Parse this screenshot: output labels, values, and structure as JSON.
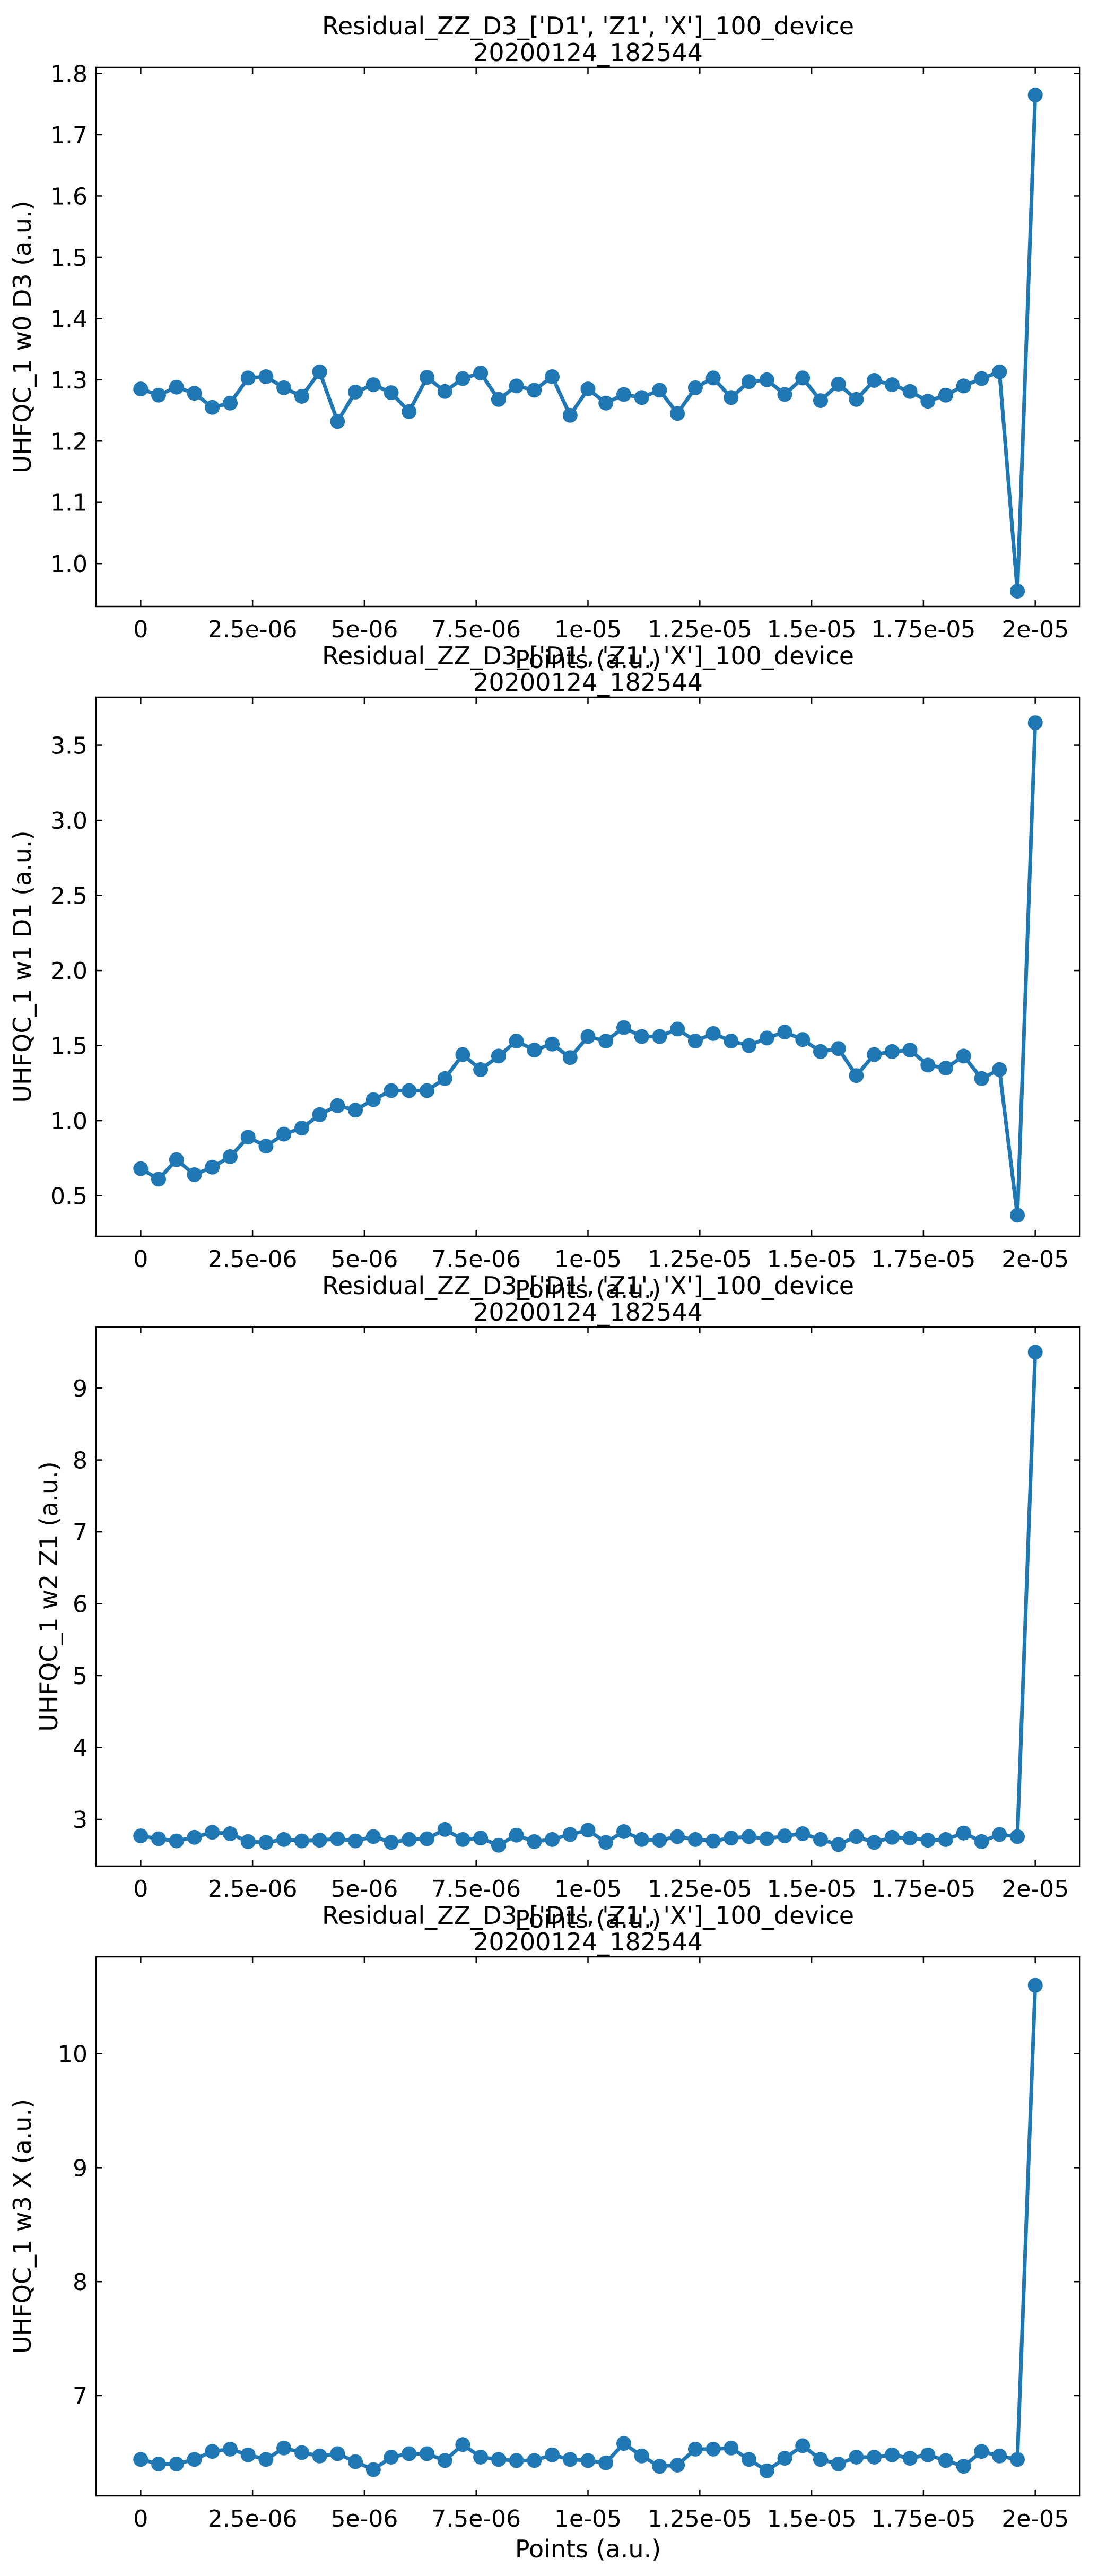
{
  "chart_data": [
    {
      "type": "line",
      "title": "Residual_ZZ_D3_['D1', 'Z1', 'X']_100_device",
      "subtitle": "20200124_182544",
      "xlabel": "Points (a.u.)",
      "ylabel": "UHFQC_1 w0 D3 (a.u.)",
      "xlim": [
        -1e-06,
        2.1e-05
      ],
      "ylim": [
        0.93,
        1.81
      ],
      "x_ticks": [
        0,
        2.5e-06,
        5e-06,
        7.5e-06,
        1e-05,
        1.25e-05,
        1.5e-05,
        1.75e-05,
        2e-05
      ],
      "x_tick_labels": [
        "0",
        "2.5e-06",
        "5e-06",
        "7.5e-06",
        "1e-05",
        "1.25e-05",
        "1.5e-05",
        "1.75e-05",
        "2e-05"
      ],
      "y_ticks": [
        1.0,
        1.1,
        1.2,
        1.3,
        1.4,
        1.5,
        1.6,
        1.7,
        1.8
      ],
      "y_tick_labels": [
        "1.0",
        "1.1",
        "1.2",
        "1.3",
        "1.4",
        "1.5",
        "1.6",
        "1.7",
        "1.8"
      ],
      "grid": false,
      "series": [
        {
          "color": "#1f77b4",
          "x_start": 0,
          "x_step": 4e-07,
          "y": [
            1.285,
            1.275,
            1.288,
            1.278,
            1.255,
            1.262,
            1.303,
            1.305,
            1.287,
            1.273,
            1.313,
            1.232,
            1.28,
            1.292,
            1.279,
            1.248,
            1.304,
            1.281,
            1.302,
            1.311,
            1.268,
            1.29,
            1.283,
            1.305,
            1.242,
            1.285,
            1.262,
            1.276,
            1.271,
            1.283,
            1.245,
            1.287,
            1.303,
            1.271,
            1.297,
            1.3,
            1.276,
            1.303,
            1.266,
            1.293,
            1.268,
            1.299,
            1.292,
            1.281,
            1.265,
            1.275,
            1.29,
            1.302,
            1.313,
            0.955,
            1.765
          ]
        }
      ]
    },
    {
      "type": "line",
      "title": "Residual_ZZ_D3_['D1', 'Z1', 'X']_100_device",
      "subtitle": "20200124_182544",
      "xlabel": "Points (a.u.)",
      "ylabel": "UHFQC_1 w1 D1 (a.u.)",
      "xlim": [
        -1e-06,
        2.1e-05
      ],
      "ylim": [
        0.23,
        3.82
      ],
      "x_ticks": [
        0,
        2.5e-06,
        5e-06,
        7.5e-06,
        1e-05,
        1.25e-05,
        1.5e-05,
        1.75e-05,
        2e-05
      ],
      "x_tick_labels": [
        "0",
        "2.5e-06",
        "5e-06",
        "7.5e-06",
        "1e-05",
        "1.25e-05",
        "1.5e-05",
        "1.75e-05",
        "2e-05"
      ],
      "y_ticks": [
        0.5,
        1.0,
        1.5,
        2.0,
        2.5,
        3.0,
        3.5
      ],
      "y_tick_labels": [
        "0.5",
        "1.0",
        "1.5",
        "2.0",
        "2.5",
        "3.0",
        "3.5"
      ],
      "grid": false,
      "series": [
        {
          "color": "#1f77b4",
          "x_start": 0,
          "x_step": 4e-07,
          "y": [
            0.68,
            0.61,
            0.74,
            0.64,
            0.69,
            0.76,
            0.89,
            0.83,
            0.91,
            0.95,
            1.04,
            1.1,
            1.07,
            1.14,
            1.2,
            1.2,
            1.2,
            1.28,
            1.44,
            1.34,
            1.43,
            1.53,
            1.47,
            1.51,
            1.42,
            1.56,
            1.53,
            1.62,
            1.56,
            1.56,
            1.61,
            1.53,
            1.58,
            1.53,
            1.5,
            1.55,
            1.59,
            1.54,
            1.46,
            1.48,
            1.3,
            1.44,
            1.46,
            1.47,
            1.37,
            1.35,
            1.43,
            1.28,
            1.34,
            0.37,
            3.65
          ]
        }
      ]
    },
    {
      "type": "line",
      "title": "Residual_ZZ_D3_['D1', 'Z1', 'X']_100_device",
      "subtitle": "20200124_182544",
      "xlabel": "Points (a.u.)",
      "ylabel": "UHFQC_1 w2 Z1 (a.u.)",
      "xlim": [
        -1e-06,
        2.1e-05
      ],
      "ylim": [
        2.35,
        9.85
      ],
      "x_ticks": [
        0,
        2.5e-06,
        5e-06,
        7.5e-06,
        1e-05,
        1.25e-05,
        1.5e-05,
        1.75e-05,
        2e-05
      ],
      "x_tick_labels": [
        "0",
        "2.5e-06",
        "5e-06",
        "7.5e-06",
        "1e-05",
        "1.25e-05",
        "1.5e-05",
        "1.75e-05",
        "2e-05"
      ],
      "y_ticks": [
        3,
        4,
        5,
        6,
        7,
        8,
        9
      ],
      "y_tick_labels": [
        "3",
        "4",
        "5",
        "6",
        "7",
        "8",
        "9"
      ],
      "grid": false,
      "series": [
        {
          "color": "#1f77b4",
          "x_start": 0,
          "x_step": 4e-07,
          "y": [
            2.77,
            2.73,
            2.7,
            2.75,
            2.82,
            2.8,
            2.69,
            2.68,
            2.72,
            2.7,
            2.71,
            2.73,
            2.7,
            2.76,
            2.68,
            2.72,
            2.73,
            2.86,
            2.72,
            2.74,
            2.64,
            2.78,
            2.69,
            2.72,
            2.79,
            2.85,
            2.68,
            2.83,
            2.72,
            2.71,
            2.76,
            2.72,
            2.7,
            2.74,
            2.76,
            2.73,
            2.77,
            2.8,
            2.72,
            2.65,
            2.76,
            2.68,
            2.75,
            2.74,
            2.71,
            2.72,
            2.81,
            2.69,
            2.79,
            2.76,
            9.5
          ]
        }
      ]
    },
    {
      "type": "line",
      "title": "Residual_ZZ_D3_['D1', 'Z1', 'X']_100_device",
      "subtitle": "20200124_182544",
      "xlabel": "Points (a.u.)",
      "ylabel": "UHFQC_1 w3 X (a.u.)",
      "xlim": [
        -1e-06,
        2.1e-05
      ],
      "ylim": [
        6.12,
        10.85
      ],
      "x_ticks": [
        0,
        2.5e-06,
        5e-06,
        7.5e-06,
        1e-05,
        1.25e-05,
        1.5e-05,
        1.75e-05,
        2e-05
      ],
      "x_tick_labels": [
        "0",
        "2.5e-06",
        "5e-06",
        "7.5e-06",
        "1e-05",
        "1.25e-05",
        "1.5e-05",
        "1.75e-05",
        "2e-05"
      ],
      "y_ticks": [
        7,
        8,
        9,
        10
      ],
      "y_tick_labels": [
        "7",
        "8",
        "9",
        "10"
      ],
      "grid": false,
      "series": [
        {
          "color": "#1f77b4",
          "x_start": 0,
          "x_step": 4e-07,
          "y": [
            6.44,
            6.4,
            6.4,
            6.44,
            6.51,
            6.53,
            6.48,
            6.44,
            6.54,
            6.5,
            6.47,
            6.49,
            6.42,
            6.35,
            6.46,
            6.49,
            6.49,
            6.43,
            6.57,
            6.46,
            6.44,
            6.43,
            6.43,
            6.48,
            6.44,
            6.43,
            6.41,
            6.58,
            6.47,
            6.38,
            6.39,
            6.53,
            6.53,
            6.54,
            6.44,
            6.34,
            6.45,
            6.56,
            6.44,
            6.4,
            6.46,
            6.46,
            6.48,
            6.45,
            6.48,
            6.43,
            6.38,
            6.51,
            6.47,
            6.44,
            10.6
          ]
        }
      ]
    }
  ]
}
